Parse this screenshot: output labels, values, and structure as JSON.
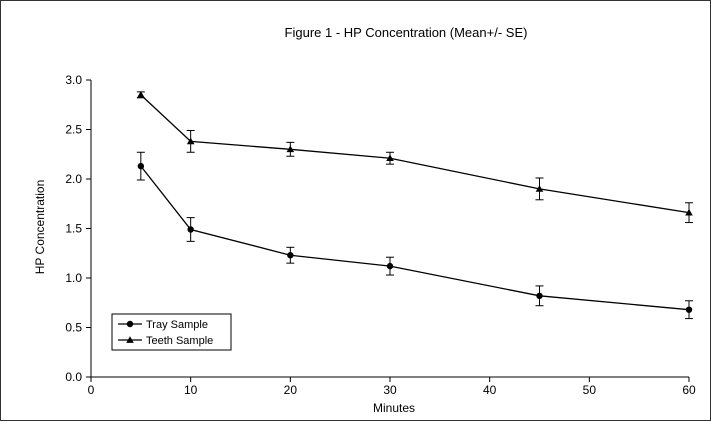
{
  "chart_data": {
    "type": "line",
    "title": "Figure 1 - HP Concentration (Mean+/- SE)",
    "xlabel": "Minutes",
    "ylabel": "HP Concentration",
    "xlim": [
      0,
      60
    ],
    "ylim": [
      0,
      3
    ],
    "x_ticks": [
      0,
      10,
      20,
      30,
      40,
      50,
      60
    ],
    "x_tick_labels": [
      "0",
      "10",
      "20",
      "30",
      "40",
      "50",
      "60"
    ],
    "y_ticks": [
      0,
      0.5,
      1,
      1.5,
      2,
      2.5,
      3
    ],
    "y_tick_labels": [
      "0.0",
      "0.5",
      "1.0",
      "1.5",
      "2.0",
      "2.5",
      "3.0"
    ],
    "grid": false,
    "legend_position": "bottom-left",
    "series": [
      {
        "name": "Tray Sample",
        "marker": "circle",
        "color": "#000000",
        "x": [
          5,
          10,
          20,
          30,
          45,
          60
        ],
        "y": [
          2.13,
          1.49,
          1.23,
          1.12,
          0.82,
          0.68
        ],
        "se": [
          0.14,
          0.12,
          0.08,
          0.09,
          0.1,
          0.09
        ]
      },
      {
        "name": "Teeth Sample",
        "marker": "triangle",
        "color": "#000000",
        "x": [
          5,
          10,
          20,
          30,
          45,
          60
        ],
        "y": [
          2.85,
          2.38,
          2.3,
          2.21,
          1.9,
          1.66
        ],
        "se": [
          0.03,
          0.11,
          0.07,
          0.06,
          0.11,
          0.1
        ]
      }
    ]
  }
}
